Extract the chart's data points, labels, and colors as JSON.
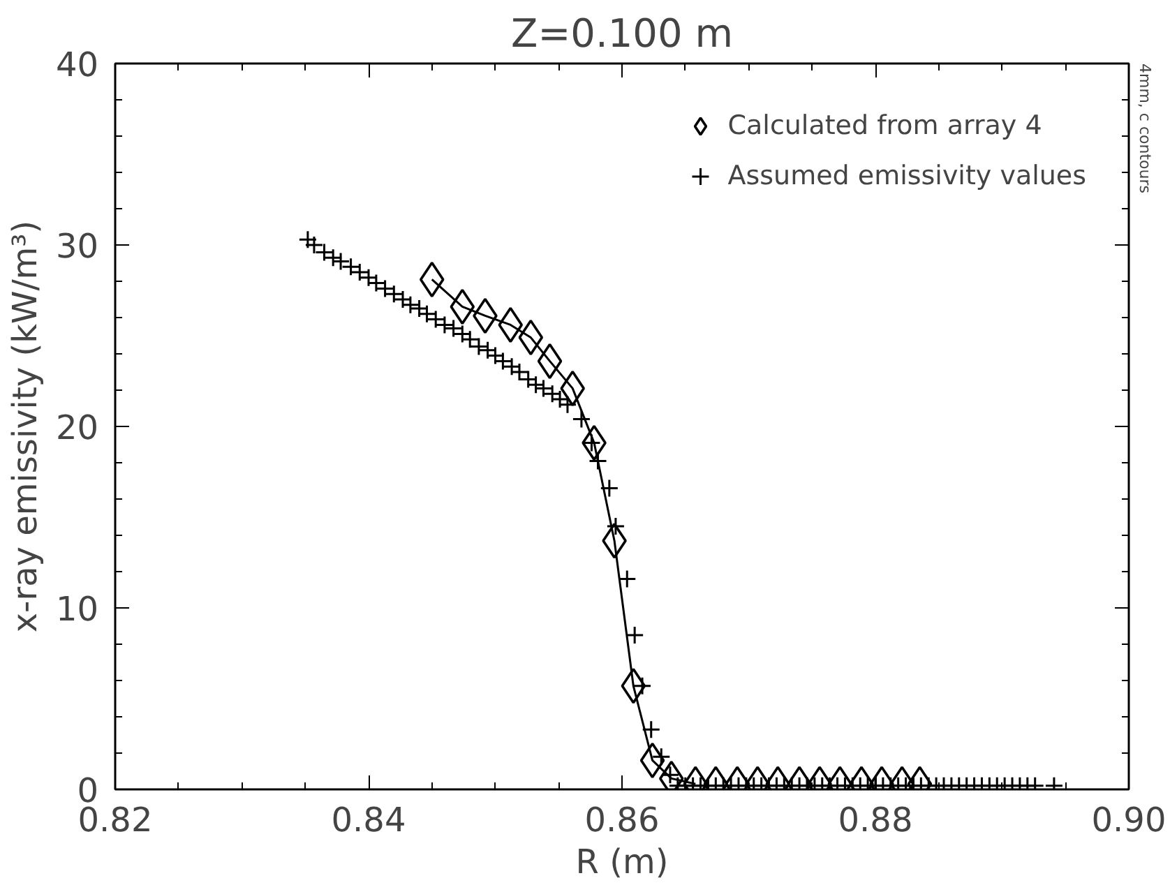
{
  "chart_data": {
    "type": "scatter",
    "title": "Z=0.100 m",
    "xlabel": "R (m)",
    "ylabel": "x-ray emissivity (kW/m³)",
    "annotations": [
      "4mm, c contours"
    ],
    "xlim": [
      0.82,
      0.9
    ],
    "xticks": [
      0.82,
      0.84,
      0.86,
      0.88,
      {
        "value": 0.9,
        "label": "0.90"
      }
    ],
    "ylim": [
      0,
      40
    ],
    "yticks": [
      0,
      10,
      20,
      30,
      40
    ],
    "grid": false,
    "legend": "top right",
    "series": [
      {
        "name": "Calculated from array 4",
        "marker": "diamond",
        "color": "#000000",
        "x": [
          0.845,
          0.8474,
          0.8492,
          0.8512,
          0.8528,
          0.8543,
          0.8561,
          0.8578,
          0.8594,
          0.8609,
          0.8624,
          0.8639,
          0.8658,
          0.8674,
          0.8691,
          0.8707,
          0.8723,
          0.874,
          0.8756,
          0.8772,
          0.8789,
          0.8805,
          0.8821,
          0.8835
        ],
        "values": [
          28.1,
          26.6,
          26.1,
          25.6,
          24.9,
          23.6,
          22.1,
          19.1,
          13.7,
          5.7,
          1.6,
          0.6,
          0.3,
          0.3,
          0.3,
          0.3,
          0.3,
          0.3,
          0.3,
          0.3,
          0.3,
          0.3,
          0.3,
          0.3
        ]
      },
      {
        "type": "line",
        "line_style": "solid",
        "color": "#000000",
        "x": [
          0.845,
          0.8474,
          0.8492,
          0.8512,
          0.8528,
          0.8543,
          0.8561,
          0.8578,
          0.8594,
          0.8609,
          0.8624,
          0.8639,
          0.8658
        ],
        "values": [
          28.1,
          26.6,
          26.1,
          25.6,
          24.9,
          23.6,
          22.1,
          19.1,
          13.7,
          5.7,
          1.6,
          0.6,
          0.3
        ]
      },
      {
        "name": "Assumed emissivity values",
        "marker": "cross",
        "color": "#000000",
        "x": [
          0.8352,
          0.8357,
          0.8365,
          0.8372,
          0.8378,
          0.8386,
          0.8393,
          0.84,
          0.8406,
          0.8413,
          0.842,
          0.8427,
          0.8433,
          0.844,
          0.8446,
          0.8453,
          0.846,
          0.8467,
          0.8474,
          0.848,
          0.8487,
          0.8494,
          0.85,
          0.8506,
          0.8513,
          0.8519,
          0.8526,
          0.8532,
          0.8538,
          0.8545,
          0.8551,
          0.8557,
          0.8568,
          0.8576,
          0.8581,
          0.859,
          0.8595,
          0.8604,
          0.861,
          0.8616,
          0.8623,
          0.8631,
          0.8638,
          0.8644,
          0.865,
          0.8656,
          0.8662,
          0.8668,
          0.8674,
          0.868,
          0.8686,
          0.8692,
          0.8698,
          0.8704,
          0.871,
          0.8716,
          0.8722,
          0.8728,
          0.8734,
          0.874,
          0.8746,
          0.8752,
          0.8758,
          0.8764,
          0.877,
          0.8776,
          0.8782,
          0.8788,
          0.8794,
          0.88,
          0.8806,
          0.8812,
          0.8818,
          0.8824,
          0.883,
          0.8836,
          0.8842,
          0.8848,
          0.8854,
          0.886,
          0.8866,
          0.8872,
          0.8878,
          0.8884,
          0.889,
          0.8896,
          0.8902,
          0.8908,
          0.8914,
          0.892,
          0.8926,
          0.8941
        ],
        "values": [
          30.3,
          30.0,
          29.6,
          29.3,
          29.1,
          28.8,
          28.5,
          28.2,
          27.9,
          27.6,
          27.3,
          27.0,
          26.7,
          26.5,
          26.2,
          25.9,
          25.6,
          25.4,
          25.1,
          24.8,
          24.4,
          24.2,
          23.9,
          23.6,
          23.3,
          23.0,
          22.6,
          22.3,
          22.1,
          21.8,
          21.5,
          21.2,
          20.4,
          19.1,
          18.1,
          16.6,
          14.5,
          11.6,
          8.5,
          5.7,
          3.3,
          1.8,
          0.8,
          0.2,
          0.2,
          0.2,
          0.2,
          0.2,
          0.2,
          0.2,
          0.2,
          0.2,
          0.2,
          0.2,
          0.2,
          0.2,
          0.2,
          0.2,
          0.2,
          0.2,
          0.2,
          0.2,
          0.2,
          0.2,
          0.2,
          0.2,
          0.2,
          0.2,
          0.2,
          0.2,
          0.2,
          0.2,
          0.2,
          0.2,
          0.2,
          0.2,
          0.2,
          0.2,
          0.2,
          0.2,
          0.2,
          0.2,
          0.2,
          0.2,
          0.2,
          0.2,
          0.2,
          0.2,
          0.2,
          0.2,
          0.2,
          0.2
        ]
      }
    ]
  }
}
